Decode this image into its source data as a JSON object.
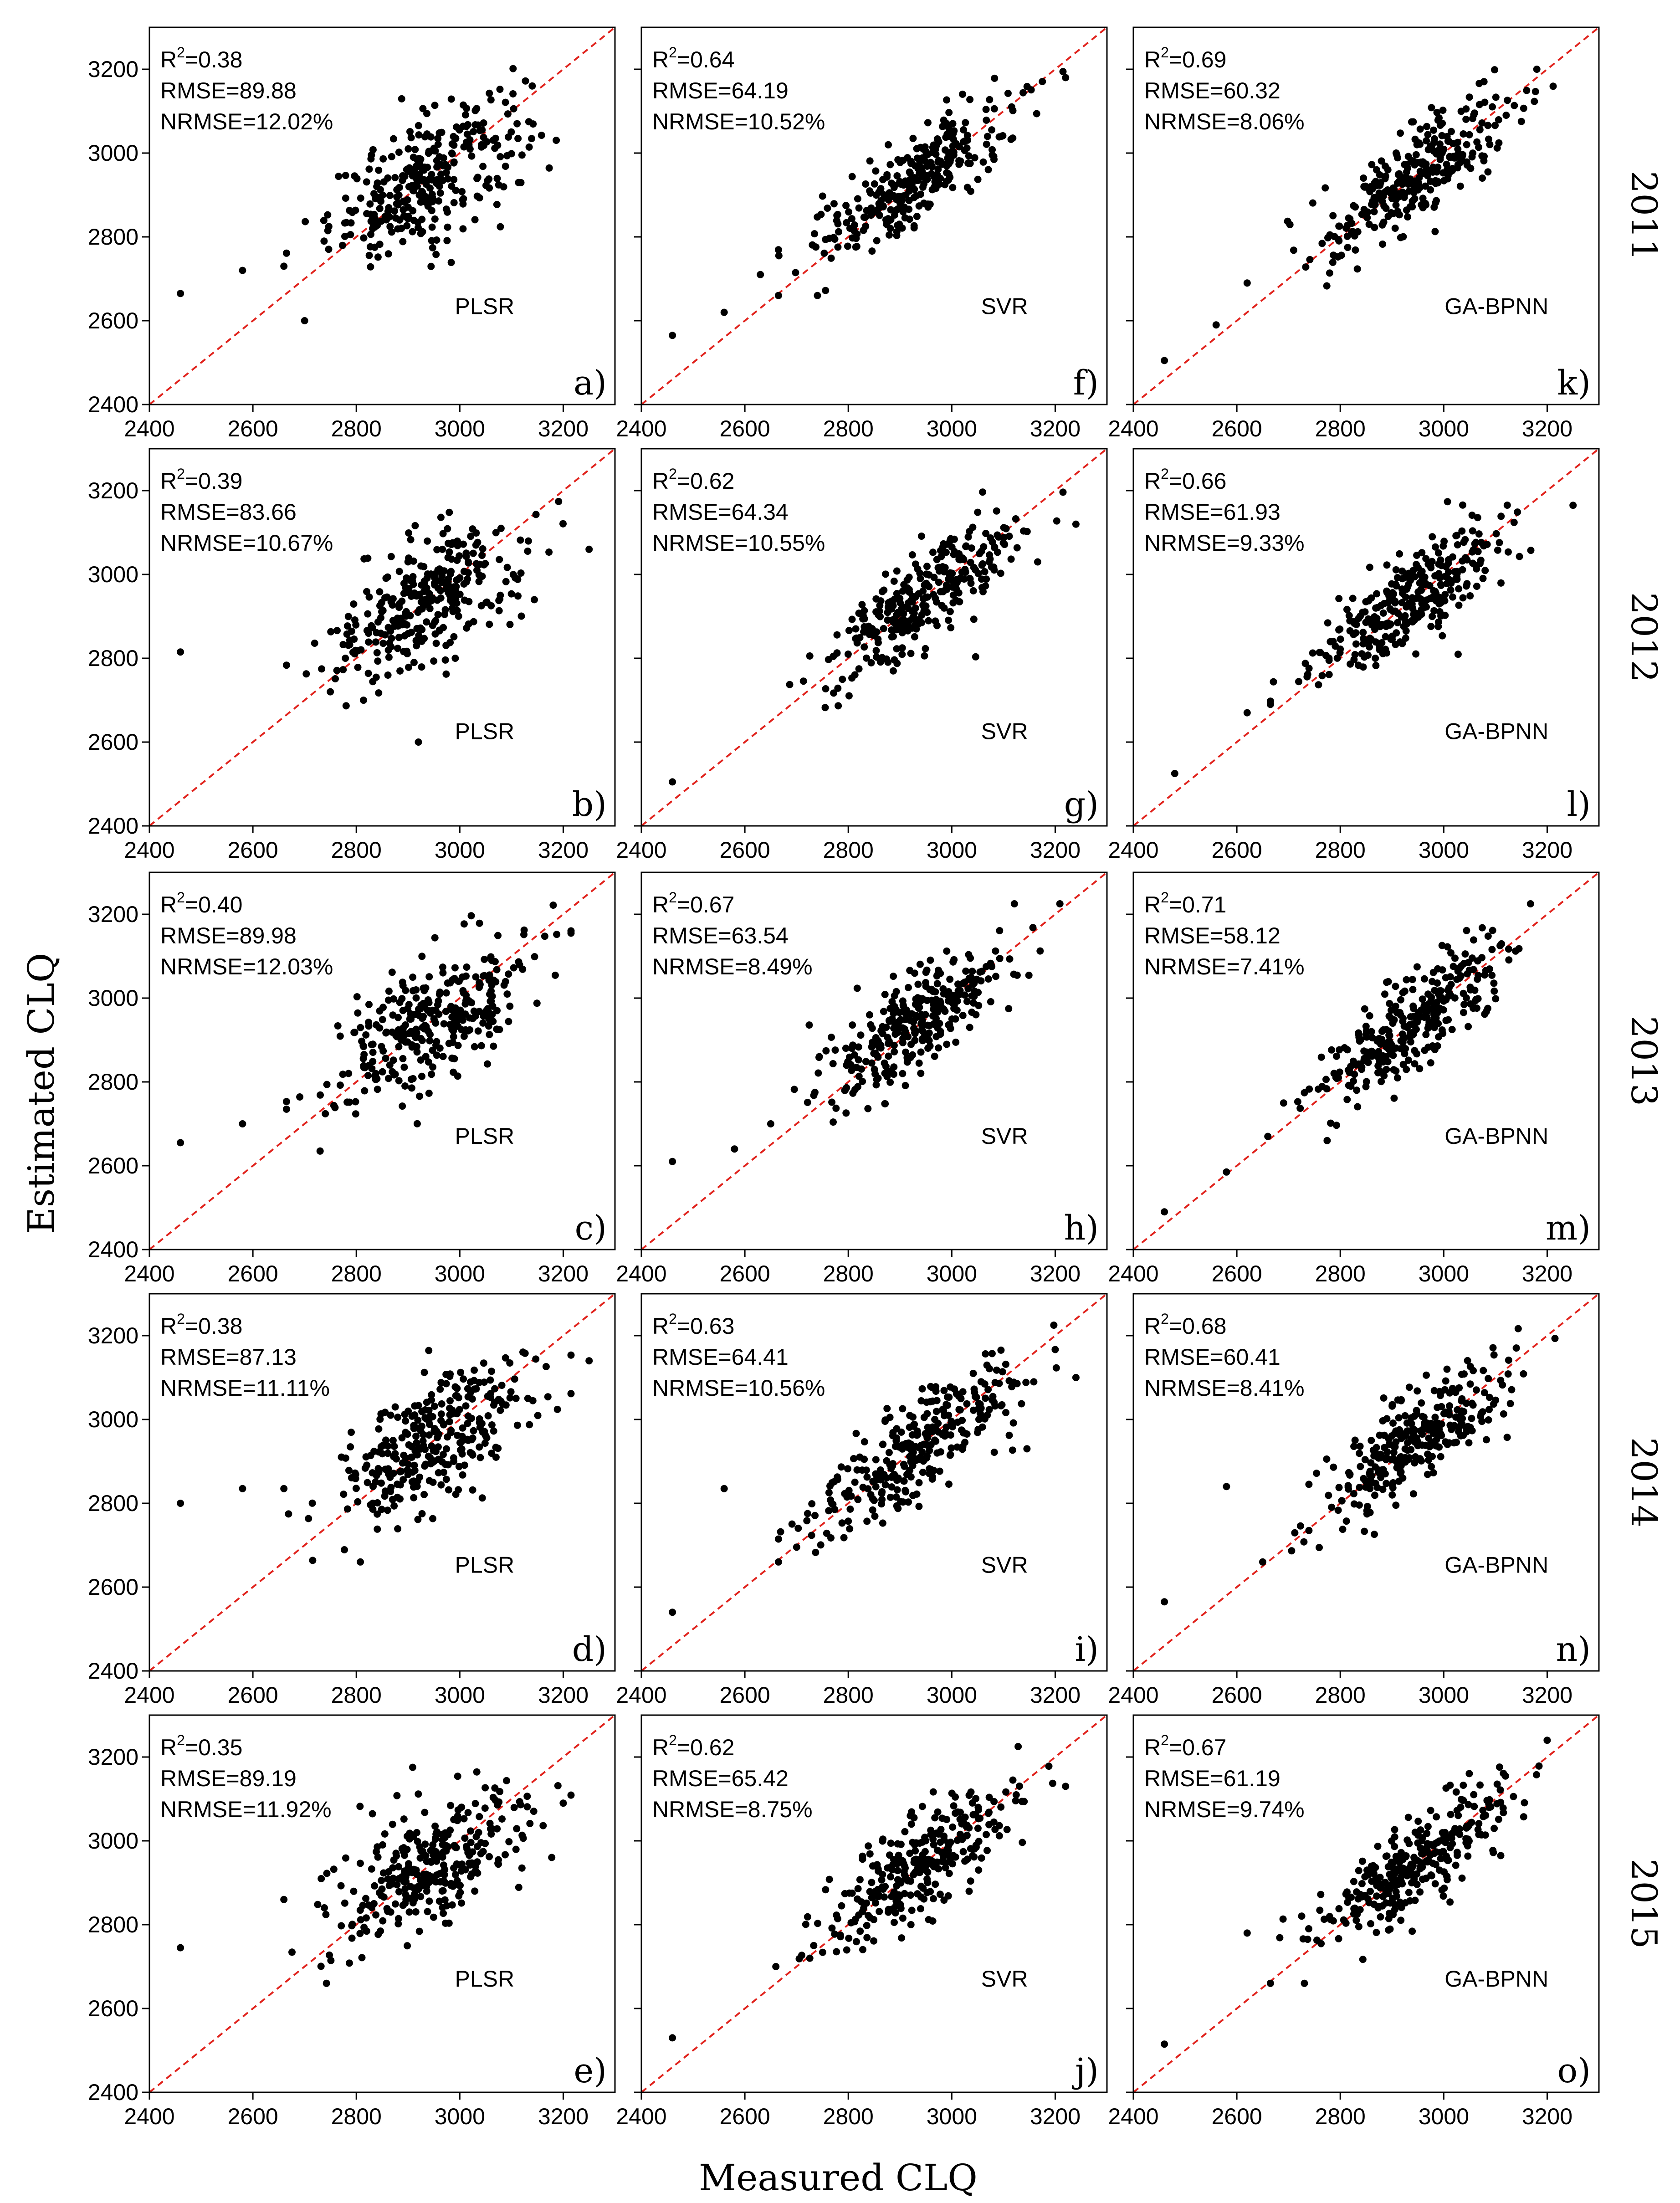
{
  "figure": {
    "xlabel": "Measured CLQ",
    "ylabel": "Estimated CLQ",
    "years": [
      "2011",
      "2012",
      "2013",
      "2014",
      "2015"
    ],
    "models": [
      "PLSR",
      "SVR",
      "GA-BPNN"
    ]
  },
  "chart_data": [
    {
      "type": "scatter",
      "panel": "a)",
      "model": "PLSR",
      "year": "2011",
      "r2_label": "=0.38",
      "rmse_label": "RMSE=89.88",
      "nrmse_label": "NRMSE=12.02%",
      "r2": 0.38,
      "rmse": 89.88,
      "nrmse": 12.02,
      "xlim": [
        2400,
        3300
      ],
      "ylim": [
        2400,
        3300
      ],
      "xticks": [
        2400,
        2600,
        2800,
        3000,
        3200
      ],
      "yticks": [
        2400,
        2600,
        2800,
        3000,
        3200
      ],
      "reference_line": "1:1",
      "n_points": 300,
      "outliers": [
        [
          2460,
          2665
        ],
        [
          2580,
          2720
        ],
        [
          2660,
          2730
        ],
        [
          2700,
          2600
        ]
      ]
    },
    {
      "type": "scatter",
      "panel": "b)",
      "model": "PLSR",
      "year": "2012",
      "r2_label": "=0.39",
      "rmse_label": "RMSE=83.66",
      "nrmse_label": "NRMSE=10.67%",
      "r2": 0.39,
      "rmse": 83.66,
      "nrmse": 10.67,
      "xlim": [
        2400,
        3300
      ],
      "ylim": [
        2400,
        3300
      ],
      "xticks": [
        2400,
        2600,
        2800,
        3000,
        3200
      ],
      "yticks": [
        2400,
        2600,
        2800,
        3000,
        3200
      ],
      "reference_line": "1:1",
      "n_points": 300,
      "outliers": [
        [
          2460,
          2815
        ],
        [
          2920,
          2600
        ],
        [
          3250,
          3060
        ]
      ]
    },
    {
      "type": "scatter",
      "panel": "c)",
      "model": "PLSR",
      "year": "2013",
      "r2_label": "=0.40",
      "rmse_label": "RMSE=89.98",
      "nrmse_label": "NRMSE=12.03%",
      "r2": 0.4,
      "rmse": 89.98,
      "nrmse": 12.03,
      "xlim": [
        2400,
        3300
      ],
      "ylim": [
        2400,
        3300
      ],
      "xticks": [
        2400,
        2600,
        2800,
        3000,
        3200
      ],
      "yticks": [
        2400,
        2600,
        2800,
        3000,
        3200
      ],
      "reference_line": "1:1",
      "n_points": 300,
      "outliers": [
        [
          2460,
          2655
        ],
        [
          2580,
          2700
        ],
        [
          2730,
          2635
        ]
      ]
    },
    {
      "type": "scatter",
      "panel": "d)",
      "model": "PLSR",
      "year": "2014",
      "r2_label": "=0.38",
      "rmse_label": "RMSE=87.13",
      "nrmse_label": "NRMSE=11.11%",
      "r2": 0.38,
      "rmse": 87.13,
      "nrmse": 11.11,
      "xlim": [
        2400,
        3300
      ],
      "ylim": [
        2400,
        3300
      ],
      "xticks": [
        2400,
        2600,
        2800,
        3000,
        3200
      ],
      "yticks": [
        2400,
        2600,
        2800,
        3000,
        3200
      ],
      "reference_line": "1:1",
      "n_points": 300,
      "outliers": [
        [
          2460,
          2800
        ],
        [
          2580,
          2835
        ],
        [
          2660,
          2835
        ],
        [
          3250,
          3140
        ]
      ]
    },
    {
      "type": "scatter",
      "panel": "e)",
      "model": "PLSR",
      "year": "2015",
      "r2_label": "=0.35",
      "rmse_label": "RMSE=89.19",
      "nrmse_label": "NRMSE=11.92%",
      "r2": 0.35,
      "rmse": 89.19,
      "nrmse": 11.92,
      "xlim": [
        2400,
        3300
      ],
      "ylim": [
        2400,
        3300
      ],
      "xticks": [
        2400,
        2600,
        2800,
        3000,
        3200
      ],
      "yticks": [
        2400,
        2600,
        2800,
        3000,
        3200
      ],
      "reference_line": "1:1",
      "n_points": 300,
      "outliers": [
        [
          2460,
          2745
        ],
        [
          2660,
          2860
        ],
        [
          3200,
          3090
        ]
      ]
    },
    {
      "type": "scatter",
      "panel": "f)",
      "model": "SVR",
      "year": "2011",
      "r2_label": "=0.64",
      "rmse_label": "RMSE=64.19",
      "nrmse_label": "NRMSE=10.52%",
      "r2": 0.64,
      "rmse": 64.19,
      "nrmse": 10.52,
      "xlim": [
        2400,
        3300
      ],
      "ylim": [
        2400,
        3300
      ],
      "xticks": [
        2400,
        2600,
        2800,
        3000,
        3200
      ],
      "yticks": [
        2400,
        2600,
        2800,
        3000,
        3200
      ],
      "reference_line": "1:1",
      "n_points": 300,
      "outliers": [
        [
          2460,
          2565
        ],
        [
          2560,
          2620
        ],
        [
          2630,
          2710
        ],
        [
          3220,
          3180
        ]
      ]
    },
    {
      "type": "scatter",
      "panel": "g)",
      "model": "SVR",
      "year": "2012",
      "r2_label": "=0.62",
      "rmse_label": "RMSE=64.34",
      "nrmse_label": "NRMSE=10.55%",
      "r2": 0.62,
      "rmse": 64.34,
      "nrmse": 10.55,
      "xlim": [
        2400,
        3300
      ],
      "ylim": [
        2400,
        3300
      ],
      "xticks": [
        2400,
        2600,
        2800,
        3000,
        3200
      ],
      "yticks": [
        2400,
        2600,
        2800,
        3000,
        3200
      ],
      "reference_line": "1:1",
      "n_points": 300,
      "outliers": [
        [
          2460,
          2505
        ],
        [
          3240,
          3120
        ]
      ]
    },
    {
      "type": "scatter",
      "panel": "h)",
      "model": "SVR",
      "year": "2013",
      "r2_label": "=0.67",
      "rmse_label": "RMSE=63.54",
      "nrmse_label": "NRMSE=8.49%",
      "r2": 0.67,
      "rmse": 63.54,
      "nrmse": 8.49,
      "xlim": [
        2400,
        3300
      ],
      "ylim": [
        2400,
        3300
      ],
      "xticks": [
        2400,
        2600,
        2800,
        3000,
        3200
      ],
      "yticks": [
        2400,
        2600,
        2800,
        3000,
        3200
      ],
      "reference_line": "1:1",
      "n_points": 300,
      "outliers": [
        [
          2460,
          2610
        ],
        [
          2580,
          2640
        ],
        [
          2650,
          2700
        ]
      ]
    },
    {
      "type": "scatter",
      "panel": "i)",
      "model": "SVR",
      "year": "2014",
      "r2_label": "=0.63",
      "rmse_label": "RMSE=64.41",
      "nrmse_label": "NRMSE=10.56%",
      "r2": 0.63,
      "rmse": 64.41,
      "nrmse": 10.56,
      "xlim": [
        2400,
        3300
      ],
      "ylim": [
        2400,
        3300
      ],
      "xticks": [
        2400,
        2600,
        2800,
        3000,
        3200
      ],
      "yticks": [
        2400,
        2600,
        2800,
        3000,
        3200
      ],
      "reference_line": "1:1",
      "n_points": 300,
      "outliers": [
        [
          2460,
          2540
        ],
        [
          2560,
          2835
        ],
        [
          3240,
          3100
        ]
      ]
    },
    {
      "type": "scatter",
      "panel": "j)",
      "model": "SVR",
      "year": "2015",
      "r2_label": "=0.62",
      "rmse_label": "RMSE=65.42",
      "nrmse_label": "NRMSE=8.75%",
      "r2": 0.62,
      "rmse": 65.42,
      "nrmse": 8.75,
      "xlim": [
        2400,
        3300
      ],
      "ylim": [
        2400,
        3300
      ],
      "xticks": [
        2400,
        2600,
        2800,
        3000,
        3200
      ],
      "yticks": [
        2400,
        2600,
        2800,
        3000,
        3200
      ],
      "reference_line": "1:1",
      "n_points": 300,
      "outliers": [
        [
          2460,
          2530
        ],
        [
          2660,
          2700
        ],
        [
          3220,
          3130
        ]
      ]
    },
    {
      "type": "scatter",
      "panel": "k)",
      "model": "GA-BPNN",
      "year": "2011",
      "r2_label": "=0.69",
      "rmse_label": "RMSE=60.32",
      "nrmse_label": "NRMSE=8.06%",
      "r2": 0.69,
      "rmse": 60.32,
      "nrmse": 8.06,
      "xlim": [
        2400,
        3300
      ],
      "ylim": [
        2400,
        3300
      ],
      "xticks": [
        2400,
        2600,
        2800,
        3000,
        3200
      ],
      "yticks": [
        2400,
        2600,
        2800,
        3000,
        3200
      ],
      "reference_line": "1:1",
      "n_points": 300,
      "outliers": [
        [
          2460,
          2505
        ],
        [
          2560,
          2590
        ],
        [
          2620,
          2690
        ],
        [
          3180,
          3200
        ]
      ]
    },
    {
      "type": "scatter",
      "panel": "l)",
      "model": "GA-BPNN",
      "year": "2012",
      "r2_label": "=0.66",
      "rmse_label": "RMSE=61.93",
      "nrmse_label": "NRMSE=9.33%",
      "r2": 0.66,
      "rmse": 61.93,
      "nrmse": 9.33,
      "xlim": [
        2400,
        3300
      ],
      "ylim": [
        2400,
        3300
      ],
      "xticks": [
        2400,
        2600,
        2800,
        3000,
        3200
      ],
      "yticks": [
        2400,
        2600,
        2800,
        3000,
        3200
      ],
      "reference_line": "1:1",
      "n_points": 300,
      "outliers": [
        [
          2480,
          2525
        ],
        [
          2620,
          2670
        ],
        [
          3250,
          3165
        ]
      ]
    },
    {
      "type": "scatter",
      "panel": "m)",
      "model": "GA-BPNN",
      "year": "2013",
      "r2_label": "=0.71",
      "rmse_label": "RMSE=58.12",
      "nrmse_label": "NRMSE=7.41%",
      "r2": 0.71,
      "rmse": 58.12,
      "nrmse": 7.41,
      "xlim": [
        2400,
        3300
      ],
      "ylim": [
        2400,
        3300
      ],
      "xticks": [
        2400,
        2600,
        2800,
        3000,
        3200
      ],
      "yticks": [
        2400,
        2600,
        2800,
        3000,
        3200
      ],
      "reference_line": "1:1",
      "n_points": 300,
      "outliers": [
        [
          2460,
          2490
        ],
        [
          2580,
          2585
        ],
        [
          2660,
          2670
        ]
      ]
    },
    {
      "type": "scatter",
      "panel": "n)",
      "model": "GA-BPNN",
      "year": "2014",
      "r2_label": "=0.68",
      "rmse_label": "RMSE=60.41",
      "nrmse_label": "NRMSE=8.41%",
      "r2": 0.68,
      "rmse": 60.41,
      "nrmse": 8.41,
      "xlim": [
        2400,
        3300
      ],
      "ylim": [
        2400,
        3300
      ],
      "xticks": [
        2400,
        2600,
        2800,
        3000,
        3200
      ],
      "yticks": [
        2400,
        2600,
        2800,
        3000,
        3200
      ],
      "reference_line": "1:1",
      "n_points": 300,
      "outliers": [
        [
          2460,
          2565
        ],
        [
          2580,
          2840
        ],
        [
          2650,
          2660
        ]
      ]
    },
    {
      "type": "scatter",
      "panel": "o)",
      "model": "GA-BPNN",
      "year": "2015",
      "r2_label": "=0.67",
      "rmse_label": "RMSE=61.19",
      "nrmse_label": "NRMSE=9.74%",
      "r2": 0.67,
      "rmse": 61.19,
      "nrmse": 9.74,
      "xlim": [
        2400,
        3300
      ],
      "ylim": [
        2400,
        3300
      ],
      "xticks": [
        2400,
        2600,
        2800,
        3000,
        3200
      ],
      "yticks": [
        2400,
        2600,
        2800,
        3000,
        3200
      ],
      "reference_line": "1:1",
      "n_points": 300,
      "outliers": [
        [
          2460,
          2515
        ],
        [
          2620,
          2780
        ],
        [
          3200,
          3240
        ]
      ]
    }
  ]
}
